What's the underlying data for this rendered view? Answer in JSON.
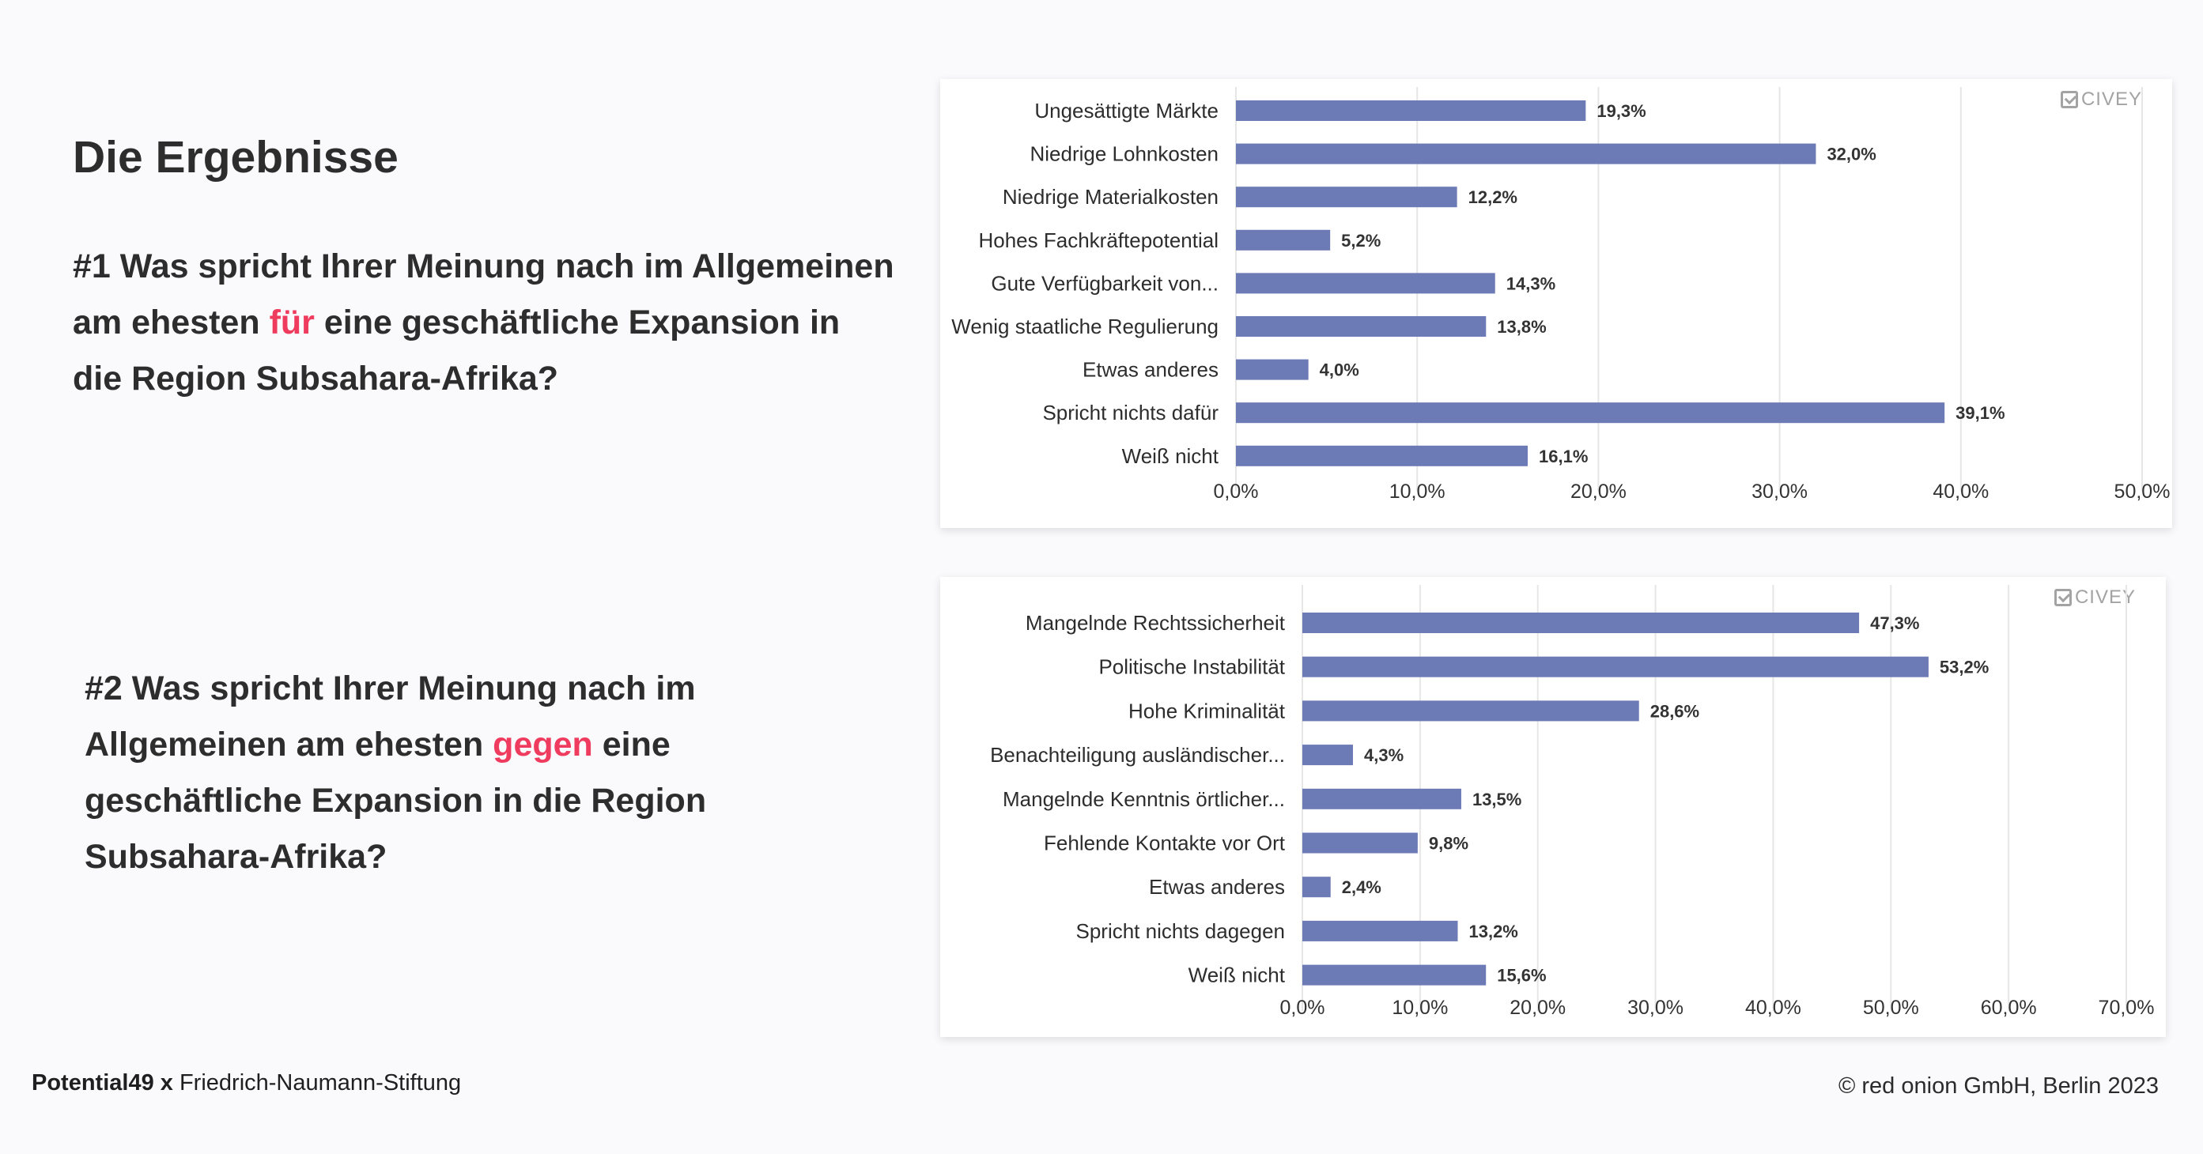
{
  "page": {
    "title": "Die Ergebnisse",
    "q1": {
      "before": "#1 Was spricht Ihrer Meinung nach im Allgemeinen am ehesten ",
      "highlight": "für",
      "after": " eine geschäftliche Expansion in die Region Subsahara-Afrika?"
    },
    "q2": {
      "before": "#2 Was spricht Ihrer Meinung nach im Allgemeinen am ehesten ",
      "highlight": "gegen",
      "after": " eine geschäftliche Expansion in die Region Subsahara-Afrika?"
    },
    "logo_text": "CIVEY",
    "footer_left_bold": "Potential49 x",
    "footer_left_rest": " Friedrich-Naumann-Stiftung",
    "footer_right": "© red onion GmbH, Berlin 2023"
  },
  "colors": {
    "bar": "#6c7ab5",
    "highlight": "#ef3c5e",
    "grid": "#e6e6e6",
    "text": "#2d2d2d"
  },
  "chart_data": [
    {
      "type": "bar",
      "orientation": "horizontal",
      "categories": [
        "Ungesättigte Märkte",
        "Niedrige Lohnkosten",
        "Niedrige Materialkosten",
        "Hohes Fachkräftepotential",
        "Gute Verfügbarkeit von...",
        "Wenig staatliche Regulierung",
        "Etwas anderes",
        "Spricht nichts dafür",
        "Weiß nicht"
      ],
      "values": [
        19.3,
        32.0,
        12.2,
        5.2,
        14.3,
        13.8,
        4.0,
        39.1,
        16.1
      ],
      "value_labels": [
        "19,3%",
        "32,0%",
        "12,2%",
        "5,2%",
        "14,3%",
        "13,8%",
        "4,0%",
        "39,1%",
        "16,1%"
      ],
      "xlim": [
        0,
        50
      ],
      "xticks": [
        0,
        10,
        20,
        30,
        40,
        50
      ],
      "xtick_labels": [
        "0,0%",
        "10,0%",
        "20,0%",
        "30,0%",
        "40,0%",
        "50,0%"
      ],
      "grid": true
    },
    {
      "type": "bar",
      "orientation": "horizontal",
      "categories": [
        "Mangelnde Rechtssicherheit",
        "Politische Instabilität",
        "Hohe Kriminalität",
        "Benachteiligung ausländischer...",
        "Mangelnde Kenntnis örtlicher...",
        "Fehlende Kontakte vor Ort",
        "Etwas anderes",
        "Spricht nichts dagegen",
        "Weiß nicht"
      ],
      "values": [
        47.3,
        53.2,
        28.6,
        4.3,
        13.5,
        9.8,
        2.4,
        13.2,
        15.6
      ],
      "value_labels": [
        "47,3%",
        "53,2%",
        "28,6%",
        "4,3%",
        "13,5%",
        "9,8%",
        "2,4%",
        "13,2%",
        "15,6%"
      ],
      "xlim": [
        0,
        70
      ],
      "xticks": [
        0,
        10,
        20,
        30,
        40,
        50,
        60,
        70
      ],
      "xtick_labels": [
        "0,0%",
        "10,0%",
        "20,0%",
        "30,0%",
        "40,0%",
        "50,0%",
        "60,0%",
        "70,0%"
      ],
      "grid": true
    }
  ]
}
